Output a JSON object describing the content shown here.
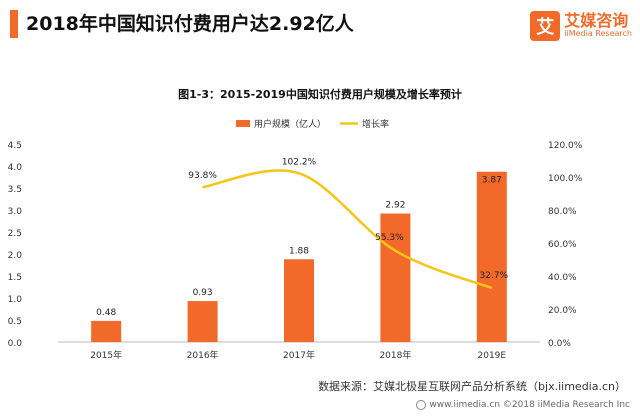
{
  "header": {
    "title": "2018年中国知识付费用户达2.92亿人",
    "accent_color": "#f26a2a"
  },
  "brand": {
    "icon_char": "艾",
    "name_cn": "艾媒咨询",
    "name_en": "iiMedia Research",
    "icon": "iimedia-logo-icon"
  },
  "footer": {
    "source": "数据来源：艾媒北极星互联网产品分析系统（bjx.iimedia.cn）",
    "watermark": "www.iimedia.cn  ©2018  iiMedia Research Inc"
  },
  "chart_data": {
    "type": "bar",
    "title": "图1-3：2015-2019中国知识付费用户规模及增长率预计",
    "categories": [
      "2015年",
      "2016年",
      "2017年",
      "2018年",
      "2019E"
    ],
    "series": [
      {
        "name": "用户规模（亿人）",
        "kind": "bar",
        "axis": "left",
        "color": "#f26a2a",
        "values": [
          0.48,
          0.93,
          1.88,
          2.92,
          3.87
        ],
        "labels": [
          "0.48",
          "0.93",
          "1.88",
          "2.92",
          "3.87"
        ]
      },
      {
        "name": "增长率",
        "kind": "line",
        "axis": "right",
        "color": "#f5c518",
        "values": [
          null,
          93.8,
          102.2,
          55.3,
          32.7
        ],
        "labels": [
          "",
          "93.8%",
          "102.2%",
          "55.3%",
          "32.7%"
        ]
      }
    ],
    "y_left": {
      "min": 0,
      "max": 4.5,
      "ticks": [
        "0.0",
        "0.5",
        "1.0",
        "1.5",
        "2.0",
        "2.5",
        "3.0",
        "3.5",
        "4.0",
        "4.5"
      ]
    },
    "y_right": {
      "min": 0,
      "max": 120,
      "ticks": [
        "0.0%",
        "20.0%",
        "40.0%",
        "60.0%",
        "80.0%",
        "100.0%",
        "120.0%"
      ]
    },
    "legend": "top-center",
    "grid": false
  }
}
